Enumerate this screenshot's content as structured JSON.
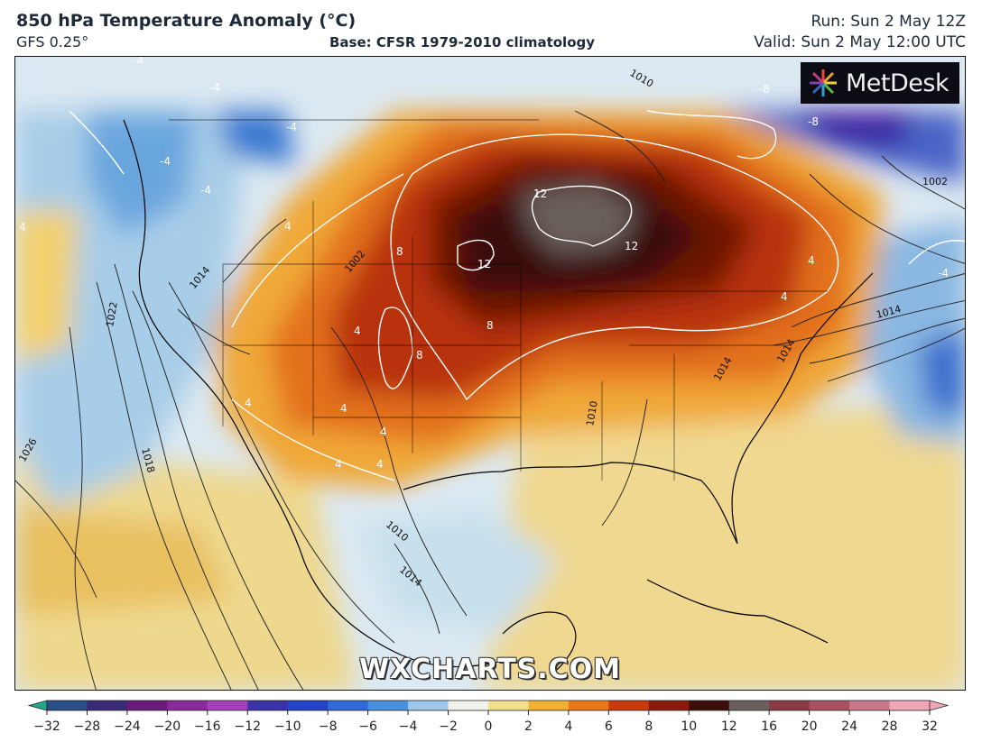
{
  "header": {
    "title": "850 hPa Temperature Anomaly (°C)",
    "model": "GFS 0.25°",
    "base": "Base: CFSR 1979-2010 climatology",
    "run": "Run: Sun 2 May 12Z",
    "valid": "Valid: Sun 2 May 12:00 UTC"
  },
  "branding": {
    "logo": "MetDesk",
    "watermark": "WXCHARTS.COM"
  },
  "colorbar": {
    "ticks": [
      "−32",
      "−28",
      "−24",
      "−20",
      "−16",
      "−12",
      "−10",
      "−8",
      "−6",
      "−4",
      "−2",
      "0",
      "2",
      "4",
      "6",
      "8",
      "10",
      "12",
      "16",
      "20",
      "24",
      "28",
      "32"
    ],
    "colors": [
      "#1fa98a",
      "#2a4f86",
      "#3a2a78",
      "#6a1a7a",
      "#8a2a9a",
      "#a640b8",
      "#3a34a8",
      "#2444c8",
      "#2f6ad8",
      "#4a90e0",
      "#9cc6ea",
      "#f2f2ec",
      "#f2e08a",
      "#f0b032",
      "#e87818",
      "#c83a0c",
      "#8a1a0a",
      "#3a0d08",
      "#6a5f5c",
      "#8a3a44",
      "#a85060",
      "#c87888",
      "#f0a8b8"
    ]
  },
  "map": {
    "isobar_labels": [
      "1010",
      "1002",
      "1014",
      "1022",
      "1014",
      "1018",
      "1026",
      "1010",
      "1010",
      "1014",
      "1002",
      "1014",
      "1014"
    ],
    "anomaly_labels": [
      "-4",
      "-4",
      "-4",
      "-4",
      "-4",
      "4",
      "4",
      "-8",
      "-8",
      "12",
      "12",
      "12",
      "8",
      "8",
      "8",
      "4",
      "4",
      "4",
      "4",
      "4",
      "4",
      "4",
      "-4",
      "4"
    ]
  }
}
